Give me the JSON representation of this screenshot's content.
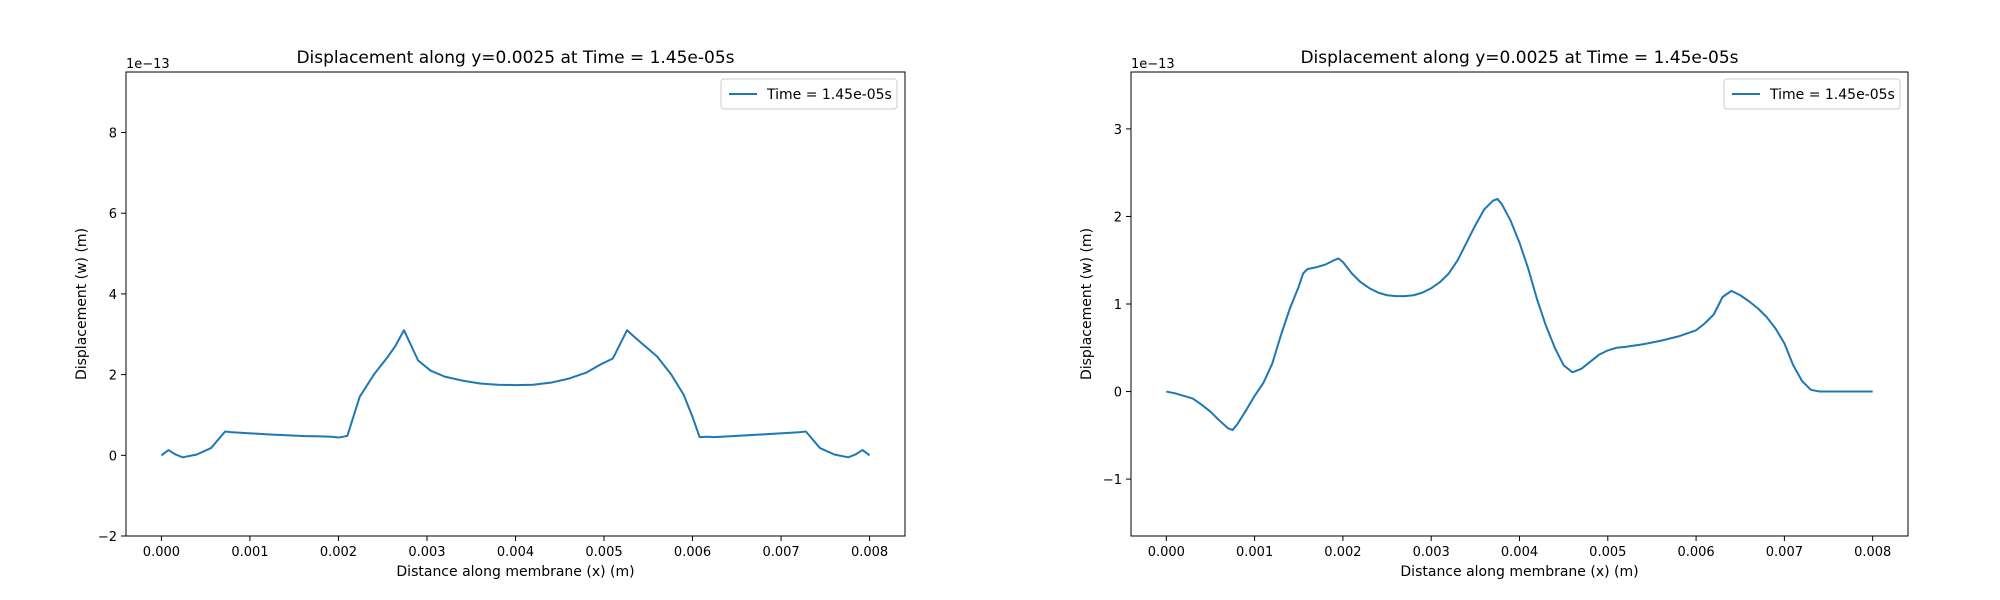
{
  "chart_data": [
    {
      "type": "line",
      "title": "Displacement along y=0.0025 at Time = 1.45e-05s",
      "xlabel": "Distance along membrane (x) (m)",
      "ylabel": "Displacement (w) (m)",
      "y_offset_label": "1e−13",
      "xlim": [
        -0.0004,
        0.0084
      ],
      "ylim": [
        -2,
        9.5
      ],
      "x_ticks": [
        0.0,
        0.001,
        0.002,
        0.003,
        0.004,
        0.005,
        0.006,
        0.007,
        0.008
      ],
      "x_tick_labels": [
        "0.000",
        "0.001",
        "0.002",
        "0.003",
        "0.004",
        "0.005",
        "0.006",
        "0.007",
        "0.008"
      ],
      "y_ticks": [
        -2,
        0,
        2,
        4,
        6,
        8
      ],
      "y_tick_labels": [
        "−2",
        "0",
        "2",
        "4",
        "6",
        "8"
      ],
      "grid": false,
      "legend_position": "top-right",
      "series": [
        {
          "name": "Time = 1.45e-05s",
          "color": "#1f77b4",
          "x": [
            0.0,
            8e-05,
            0.00016,
            0.00024,
            0.0004,
            0.00056,
            0.00072,
            0.0008,
            0.0012,
            0.0016,
            0.0018,
            0.00192,
            0.002,
            0.0021,
            0.00224,
            0.0024,
            0.00256,
            0.00264,
            0.00274,
            0.0029,
            0.00304,
            0.0032,
            0.0034,
            0.0036,
            0.0038,
            0.004,
            0.0042,
            0.0044,
            0.0046,
            0.0048,
            0.00496,
            0.0051,
            0.00526,
            0.00536,
            0.00544,
            0.0056,
            0.00576,
            0.0059,
            0.006,
            0.00608,
            0.00616,
            0.00624,
            0.0064,
            0.0068,
            0.0072,
            0.00728,
            0.00744,
            0.0076,
            0.00776,
            0.00784,
            0.00792,
            0.008
          ],
          "y": [
            0.0,
            0.13,
            0.02,
            -0.05,
            0.02,
            0.18,
            0.59,
            0.57,
            0.52,
            0.48,
            0.47,
            0.46,
            0.44,
            0.48,
            1.45,
            2.0,
            2.45,
            2.7,
            3.1,
            2.35,
            2.1,
            1.95,
            1.85,
            1.78,
            1.75,
            1.74,
            1.75,
            1.8,
            1.9,
            2.05,
            2.25,
            2.4,
            3.1,
            2.9,
            2.75,
            2.45,
            2.0,
            1.5,
            0.95,
            0.45,
            0.46,
            0.45,
            0.47,
            0.52,
            0.57,
            0.59,
            0.18,
            0.02,
            -0.05,
            0.02,
            0.13,
            0.0
          ]
        }
      ]
    },
    {
      "type": "line",
      "title": "Displacement along y=0.0025 at Time = 1.45e-05s",
      "xlabel": "Distance along membrane (x) (m)",
      "ylabel": "Displacement (w) (m)",
      "y_offset_label": "1e−13",
      "xlim": [
        -0.0004,
        0.0084
      ],
      "ylim": [
        -1.65,
        3.65
      ],
      "x_ticks": [
        0.0,
        0.001,
        0.002,
        0.003,
        0.004,
        0.005,
        0.006,
        0.007,
        0.008
      ],
      "x_tick_labels": [
        "0.000",
        "0.001",
        "0.002",
        "0.003",
        "0.004",
        "0.005",
        "0.006",
        "0.007",
        "0.008"
      ],
      "y_ticks": [
        -1,
        0,
        1,
        2,
        3
      ],
      "y_tick_labels": [
        "−1",
        "0",
        "1",
        "2",
        "3"
      ],
      "grid": false,
      "legend_position": "top-right",
      "series": [
        {
          "name": "Time = 1.45e-05s",
          "color": "#1f77b4",
          "x": [
            0.0,
            0.0001,
            0.0003,
            0.0004,
            0.0005,
            0.0006,
            0.0007,
            0.00075,
            0.0008,
            0.0009,
            0.001,
            0.0011,
            0.0012,
            0.0013,
            0.0014,
            0.0015,
            0.00155,
            0.0016,
            0.0017,
            0.0018,
            0.0019,
            0.00195,
            0.002,
            0.0021,
            0.0022,
            0.0023,
            0.0024,
            0.0025,
            0.0026,
            0.0027,
            0.0028,
            0.0029,
            0.003,
            0.0031,
            0.0032,
            0.0033,
            0.0034,
            0.0035,
            0.0036,
            0.0037,
            0.00375,
            0.0038,
            0.0039,
            0.004,
            0.0041,
            0.0042,
            0.0043,
            0.0044,
            0.0045,
            0.0046,
            0.0047,
            0.0048,
            0.0049,
            0.005,
            0.0051,
            0.0052,
            0.0054,
            0.0056,
            0.0058,
            0.006,
            0.0061,
            0.0062,
            0.0063,
            0.0064,
            0.0065,
            0.0066,
            0.0067,
            0.0068,
            0.0069,
            0.007,
            0.0071,
            0.0072,
            0.0073,
            0.0074,
            0.0076,
            0.0078,
            0.008
          ],
          "y": [
            0.0,
            -0.02,
            -0.08,
            -0.15,
            -0.23,
            -0.33,
            -0.42,
            -0.44,
            -0.38,
            -0.22,
            -0.05,
            0.1,
            0.32,
            0.65,
            0.95,
            1.2,
            1.35,
            1.4,
            1.42,
            1.45,
            1.5,
            1.52,
            1.48,
            1.35,
            1.25,
            1.18,
            1.13,
            1.1,
            1.09,
            1.09,
            1.1,
            1.13,
            1.18,
            1.25,
            1.35,
            1.5,
            1.7,
            1.9,
            2.08,
            2.18,
            2.2,
            2.14,
            1.95,
            1.7,
            1.4,
            1.05,
            0.75,
            0.5,
            0.3,
            0.22,
            0.26,
            0.34,
            0.42,
            0.47,
            0.5,
            0.51,
            0.54,
            0.58,
            0.63,
            0.7,
            0.78,
            0.88,
            1.08,
            1.15,
            1.1,
            1.03,
            0.95,
            0.85,
            0.72,
            0.55,
            0.3,
            0.12,
            0.02,
            0.0,
            0.0,
            0.0,
            0.0
          ]
        }
      ]
    }
  ]
}
